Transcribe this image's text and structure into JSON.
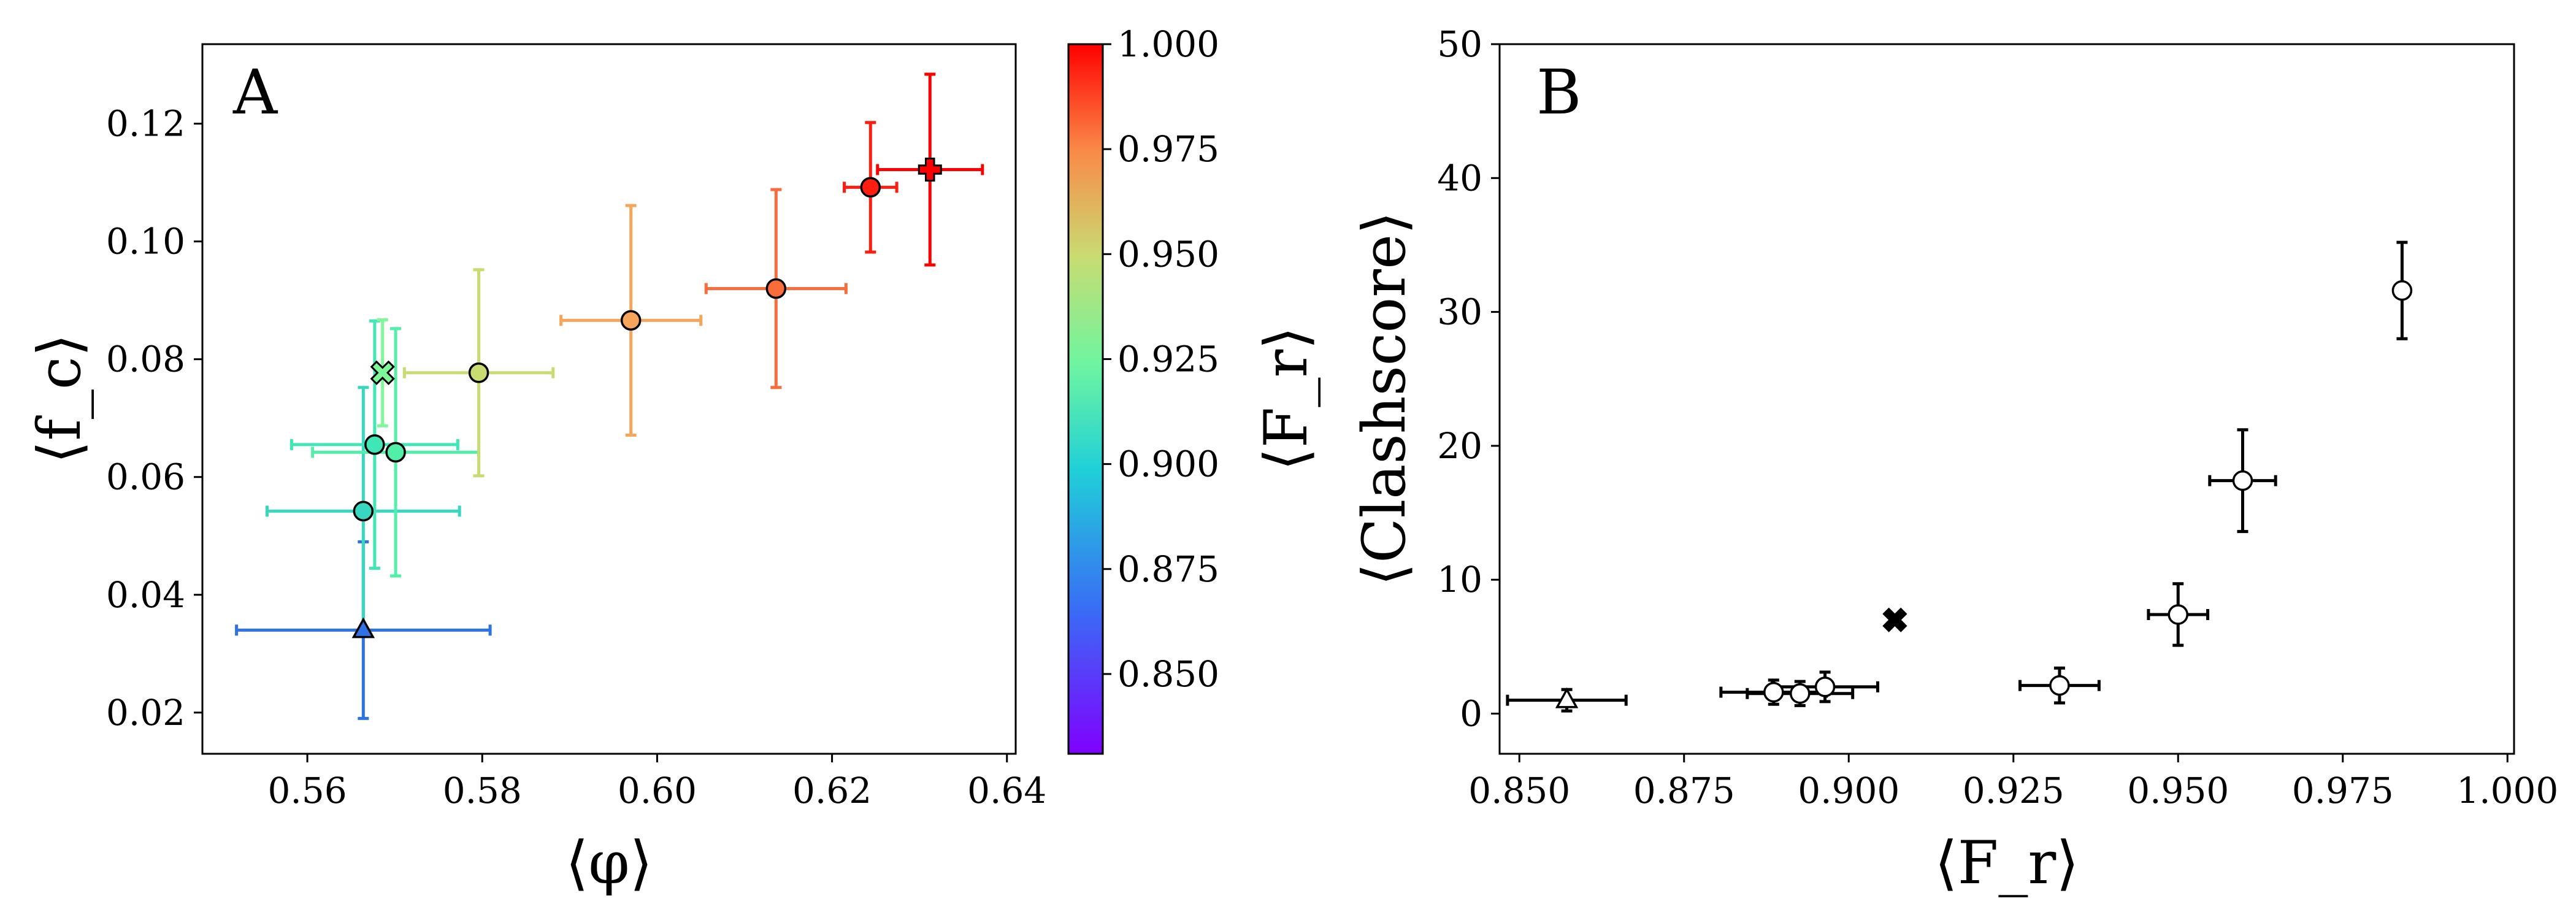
{
  "chart_data": [
    {
      "panel": "A",
      "type": "scatter",
      "panel_label": "A",
      "xlabel": "⟨φ⟩",
      "ylabel": "⟨f_c⟩",
      "xlim": [
        0.548,
        0.641
      ],
      "ylim": [
        0.013,
        0.1335
      ],
      "xticks": [
        "0.56",
        "0.58",
        "0.60",
        "0.62",
        "0.64"
      ],
      "yticks": [
        "0.02",
        "0.04",
        "0.06",
        "0.08",
        "0.10",
        "0.12"
      ],
      "points": [
        {
          "x": 0.5664,
          "y": 0.034,
          "xerr": 0.0145,
          "yerr": 0.015,
          "color": "#2f72e4",
          "marker": "triangle"
        },
        {
          "x": 0.5664,
          "y": 0.0542,
          "xerr": 0.011,
          "yerr": 0.021,
          "color": "#38d8c0",
          "marker": "circle"
        },
        {
          "x": 0.5677,
          "y": 0.0655,
          "xerr": 0.0095,
          "yerr": 0.021,
          "color": "#40e6b6",
          "marker": "circle"
        },
        {
          "x": 0.5701,
          "y": 0.0642,
          "xerr": 0.0095,
          "yerr": 0.021,
          "color": "#52efa8",
          "marker": "circle"
        },
        {
          "x": 0.5686,
          "y": 0.0777,
          "xerr": 0.0,
          "yerr": 0.009,
          "color": "#7ff89a",
          "marker": "x"
        },
        {
          "x": 0.5796,
          "y": 0.0777,
          "xerr": 0.0085,
          "yerr": 0.0175,
          "color": "#c8dc72",
          "marker": "circle"
        },
        {
          "x": 0.597,
          "y": 0.0866,
          "xerr": 0.008,
          "yerr": 0.0195,
          "color": "#f8a55c",
          "marker": "circle"
        },
        {
          "x": 0.6136,
          "y": 0.092,
          "xerr": 0.008,
          "yerr": 0.0168,
          "color": "#fa6c3a",
          "marker": "circle"
        },
        {
          "x": 0.6244,
          "y": 0.1092,
          "xerr": 0.003,
          "yerr": 0.011,
          "color": "#fe1e10",
          "marker": "circle"
        },
        {
          "x": 0.6312,
          "y": 0.1122,
          "xerr": 0.006,
          "yerr": 0.0162,
          "color": "#ff0000",
          "marker": "plus"
        }
      ],
      "colorbar": {
        "label": "⟨F_r⟩",
        "range": [
          0.831,
          1.0
        ],
        "ticks": [
          "0.850",
          "0.875",
          "0.900",
          "0.925",
          "0.950",
          "0.975",
          "1.000"
        ],
        "colormap": "rainbow"
      }
    },
    {
      "panel": "B",
      "type": "scatter",
      "panel_label": "B",
      "xlabel": "⟨F_r⟩",
      "ylabel": "⟨Clashscore⟩",
      "xlim": [
        0.847,
        1.001
      ],
      "ylim": [
        -3,
        50
      ],
      "xticks": [
        "0.850",
        "0.875",
        "0.900",
        "0.925",
        "0.950",
        "0.975",
        "1.000"
      ],
      "yticks": [
        "0",
        "10",
        "20",
        "30",
        "40",
        "50"
      ],
      "points": [
        {
          "x": 0.8572,
          "y": 1.0,
          "xerr": 0.009,
          "yerr": 0.8,
          "color": "#ffffff",
          "marker": "triangle"
        },
        {
          "x": 0.8886,
          "y": 1.6,
          "xerr": 0.008,
          "yerr": 0.9,
          "color": "#ffffff",
          "marker": "circle"
        },
        {
          "x": 0.8926,
          "y": 1.5,
          "xerr": 0.008,
          "yerr": 0.9,
          "color": "#ffffff",
          "marker": "circle"
        },
        {
          "x": 0.8964,
          "y": 2.0,
          "xerr": 0.008,
          "yerr": 1.1,
          "color": "#ffffff",
          "marker": "circle"
        },
        {
          "x": 0.907,
          "y": 7.0,
          "xerr": 0.0,
          "yerr": 0.0,
          "color": "#000000",
          "marker": "x"
        },
        {
          "x": 0.932,
          "y": 2.1,
          "xerr": 0.006,
          "yerr": 1.3,
          "color": "#ffffff",
          "marker": "circle"
        },
        {
          "x": 0.95,
          "y": 7.4,
          "xerr": 0.0045,
          "yerr": 2.3,
          "color": "#ffffff",
          "marker": "circle"
        },
        {
          "x": 0.9598,
          "y": 17.4,
          "xerr": 0.005,
          "yerr": 3.8,
          "color": "#ffffff",
          "marker": "circle"
        },
        {
          "x": 0.984,
          "y": 31.6,
          "xerr": 0.0,
          "yerr": 3.6,
          "color": "#ffffff",
          "marker": "circle"
        }
      ]
    }
  ]
}
